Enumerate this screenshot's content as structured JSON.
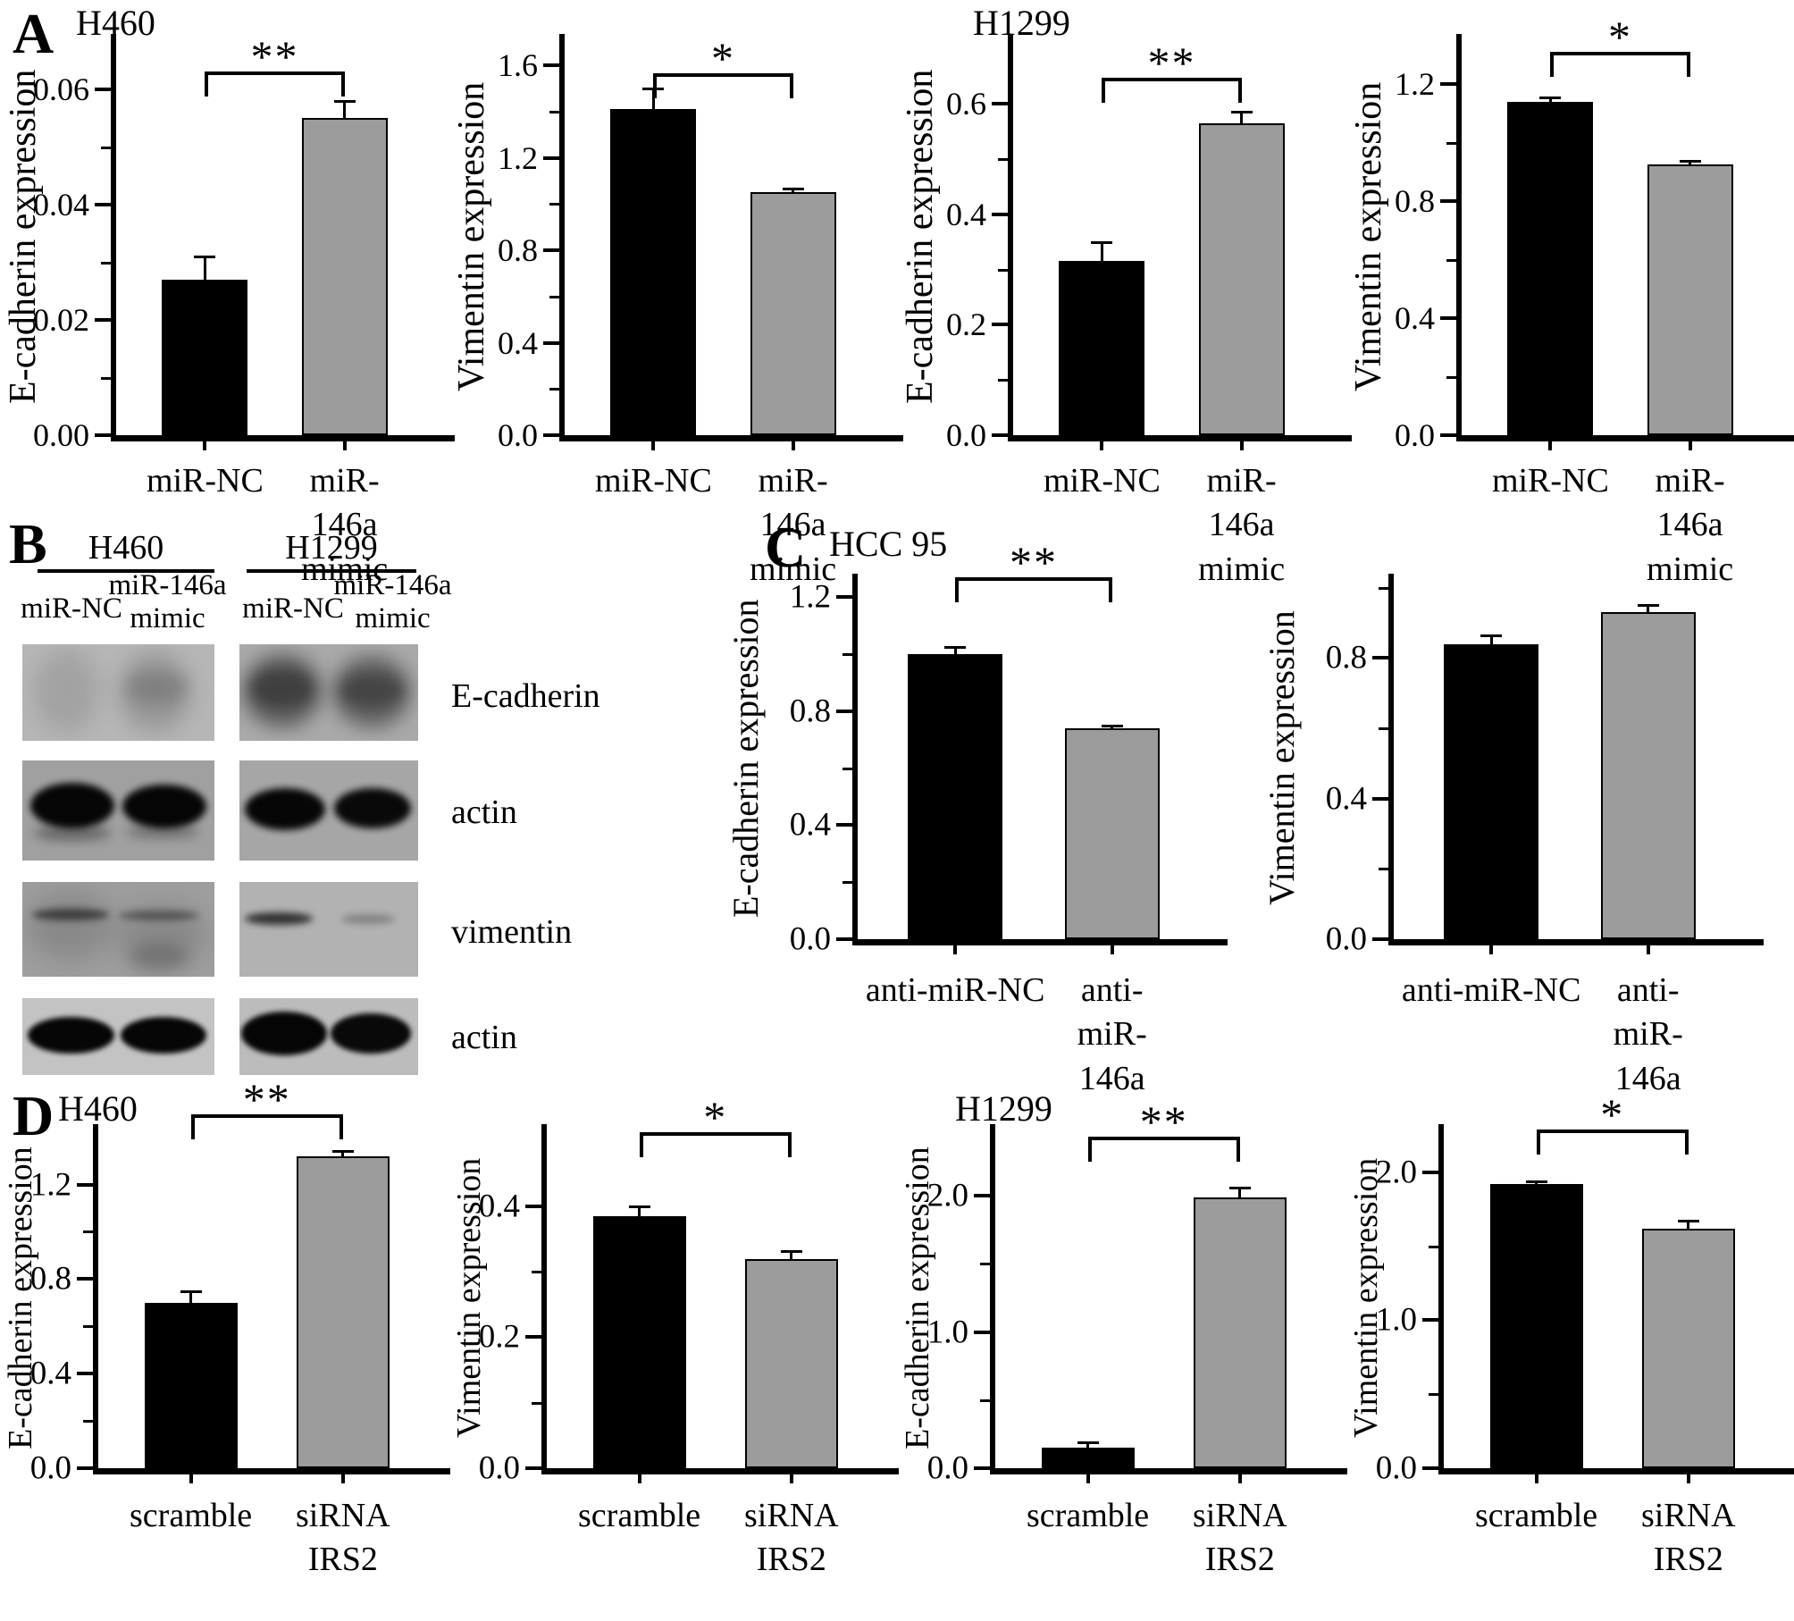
{
  "panels": {
    "A": {
      "label": "A"
    },
    "B": {
      "label": "B",
      "groups": [
        "H460",
        "H1299"
      ],
      "lane_labels": [
        "miR-NC",
        "miR-146a mimic",
        "miR-NC",
        "miR-146a mimic"
      ],
      "rows": [
        "E-cadherin",
        "actin",
        "vimentin",
        "actin"
      ]
    },
    "C": {
      "label": "C",
      "title": "HCC 95"
    },
    "D": {
      "label": "D"
    }
  },
  "colors": {
    "bar_black": "#000000",
    "bar_gray": "#9c9c9c"
  },
  "chart_data": [
    {
      "id": "a1",
      "panel": "A",
      "type": "bar",
      "title": "H460",
      "ylabel": "E-cadherin expression",
      "categories": [
        "miR-NC",
        "miR-146a mimic"
      ],
      "values": [
        0.027,
        0.055
      ],
      "errors": [
        0.004,
        0.003
      ],
      "ylim": [
        0,
        0.069
      ],
      "yticks": [
        {
          "v": 0,
          "label": "0.00"
        },
        {
          "v": 0.02,
          "label": "0.02"
        },
        {
          "v": 0.04,
          "label": "0.04"
        },
        {
          "v": 0.06,
          "label": "0.06"
        }
      ],
      "minor_ticks": [
        0.01,
        0.03,
        0.05
      ],
      "bar_colors": [
        "#000000",
        "#9c9c9c"
      ],
      "significance": "**"
    },
    {
      "id": "a2",
      "panel": "A",
      "type": "bar",
      "ylabel": "Vimentin expression",
      "categories": [
        "miR-NC",
        "miR-146a mimic"
      ],
      "values": [
        1.41,
        1.05
      ],
      "errors": [
        0.09,
        0.015
      ],
      "ylim": [
        0,
        1.72
      ],
      "yticks": [
        {
          "v": 0,
          "label": "0.0"
        },
        {
          "v": 0.4,
          "label": "0.4"
        },
        {
          "v": 0.8,
          "label": "0.8"
        },
        {
          "v": 1.2,
          "label": "1.2"
        },
        {
          "v": 1.6,
          "label": "1.6"
        }
      ],
      "minor_ticks": [
        0.2,
        0.6,
        1.0,
        1.4
      ],
      "bar_colors": [
        "#000000",
        "#9c9c9c"
      ],
      "significance": "*"
    },
    {
      "id": "a3",
      "panel": "A",
      "type": "bar",
      "title": "H1299",
      "ylabel": "E-cadherin expression",
      "categories": [
        "miR-NC",
        "miR-146a mimic"
      ],
      "values": [
        0.315,
        0.565
      ],
      "errors": [
        0.035,
        0.02
      ],
      "ylim": [
        0,
        0.72
      ],
      "yticks": [
        {
          "v": 0,
          "label": "0.0"
        },
        {
          "v": 0.2,
          "label": "0.2"
        },
        {
          "v": 0.4,
          "label": "0.4"
        },
        {
          "v": 0.6,
          "label": "0.6"
        }
      ],
      "minor_ticks": [
        0.1,
        0.3,
        0.5
      ],
      "bar_colors": [
        "#000000",
        "#9c9c9c"
      ],
      "significance": "**"
    },
    {
      "id": "a4",
      "panel": "A",
      "type": "bar",
      "ylabel": "Vimentin expression",
      "categories": [
        "miR-NC",
        "miR-146a mimic"
      ],
      "values": [
        1.14,
        0.925
      ],
      "errors": [
        0.015,
        0.012
      ],
      "ylim": [
        0,
        1.36
      ],
      "yticks": [
        {
          "v": 0,
          "label": "0.0"
        },
        {
          "v": 0.4,
          "label": "0.4"
        },
        {
          "v": 0.8,
          "label": "0.8"
        },
        {
          "v": 1.2,
          "label": "1.2"
        }
      ],
      "minor_ticks": [
        0.2,
        0.6,
        1.0
      ],
      "bar_colors": [
        "#000000",
        "#9c9c9c"
      ],
      "significance": "*"
    },
    {
      "id": "c1",
      "panel": "C",
      "type": "bar",
      "ylabel": "E-cadherin expression",
      "categories": [
        "anti-miR-NC",
        "anti-miR-146a"
      ],
      "values": [
        1.0,
        0.74
      ],
      "errors": [
        0.025,
        0.01
      ],
      "ylim": [
        0,
        1.27
      ],
      "yticks": [
        {
          "v": 0,
          "label": "0.0"
        },
        {
          "v": 0.4,
          "label": "0.4"
        },
        {
          "v": 0.8,
          "label": "0.8"
        },
        {
          "v": 1.2,
          "label": "1.2"
        }
      ],
      "minor_ticks": [
        0.2,
        0.6,
        1.0
      ],
      "bar_colors": [
        "#000000",
        "#9c9c9c"
      ],
      "significance": "**"
    },
    {
      "id": "c2",
      "panel": "C",
      "type": "bar",
      "ylabel": "Vimentin expression",
      "categories": [
        "anti-miR-NC",
        "anti-miR-146a"
      ],
      "values": [
        0.84,
        0.93
      ],
      "errors": [
        0.025,
        0.02
      ],
      "ylim": [
        0,
        1.03
      ],
      "yticks": [
        {
          "v": 0,
          "label": "0.0"
        },
        {
          "v": 0.4,
          "label": "0.4"
        },
        {
          "v": 0.8,
          "label": "0.8"
        }
      ],
      "minor_ticks": [
        0.2,
        0.6,
        1.0
      ],
      "bar_colors": [
        "#000000",
        "#9c9c9c"
      ],
      "significance": null
    },
    {
      "id": "d1",
      "panel": "D",
      "type": "bar",
      "title": "H460",
      "ylabel": "E-cadherin expression",
      "categories": [
        "scramble",
        "siRNA\nIRS2"
      ],
      "values": [
        0.7,
        1.32
      ],
      "errors": [
        0.05,
        0.02
      ],
      "ylim": [
        0,
        1.44
      ],
      "yticks": [
        {
          "v": 0,
          "label": "0.0"
        },
        {
          "v": 0.4,
          "label": "0.4"
        },
        {
          "v": 0.8,
          "label": "0.8"
        },
        {
          "v": 1.2,
          "label": "1.2"
        }
      ],
      "minor_ticks": [
        0.2,
        0.6,
        1.0
      ],
      "bar_colors": [
        "#000000",
        "#9c9c9c"
      ],
      "significance": "**"
    },
    {
      "id": "d2",
      "panel": "D",
      "type": "bar",
      "ylabel": "Vimentin expression",
      "categories": [
        "scramble",
        "siRNA\nIRS2"
      ],
      "values": [
        0.385,
        0.32
      ],
      "errors": [
        0.015,
        0.012
      ],
      "ylim": [
        0,
        0.52
      ],
      "yticks": [
        {
          "v": 0,
          "label": "0.0"
        },
        {
          "v": 0.2,
          "label": "0.2"
        },
        {
          "v": 0.4,
          "label": "0.4"
        }
      ],
      "minor_ticks": [
        0.1,
        0.3
      ],
      "bar_colors": [
        "#000000",
        "#9c9c9c"
      ],
      "significance": "*"
    },
    {
      "id": "d3",
      "panel": "D",
      "type": "bar",
      "title": "H1299",
      "ylabel": "E-cadherin expression",
      "categories": [
        "scramble",
        "siRNA\nIRS2"
      ],
      "values": [
        0.15,
        1.99
      ],
      "errors": [
        0.04,
        0.07
      ],
      "ylim": [
        0,
        2.5
      ],
      "yticks": [
        {
          "v": 0,
          "label": "0.0"
        },
        {
          "v": 1.0,
          "label": "1.0"
        },
        {
          "v": 2.0,
          "label": "2.0"
        }
      ],
      "minor_ticks": [
        0.5,
        1.5
      ],
      "bar_colors": [
        "#000000",
        "#9c9c9c"
      ],
      "significance": "**"
    },
    {
      "id": "d4",
      "panel": "D",
      "type": "bar",
      "ylabel": "Vimentin expression",
      "categories": [
        "scramble",
        "siRNA\nIRS2"
      ],
      "values": [
        1.92,
        1.62
      ],
      "errors": [
        0.02,
        0.05
      ],
      "ylim": [
        0,
        2.3
      ],
      "yticks": [
        {
          "v": 0,
          "label": "0.0"
        },
        {
          "v": 1.0,
          "label": "1.0"
        },
        {
          "v": 2.0,
          "label": "2.0"
        }
      ],
      "minor_ticks": [
        0.5,
        1.5
      ],
      "bar_colors": [
        "#000000",
        "#9c9c9c"
      ],
      "significance": "*"
    }
  ]
}
